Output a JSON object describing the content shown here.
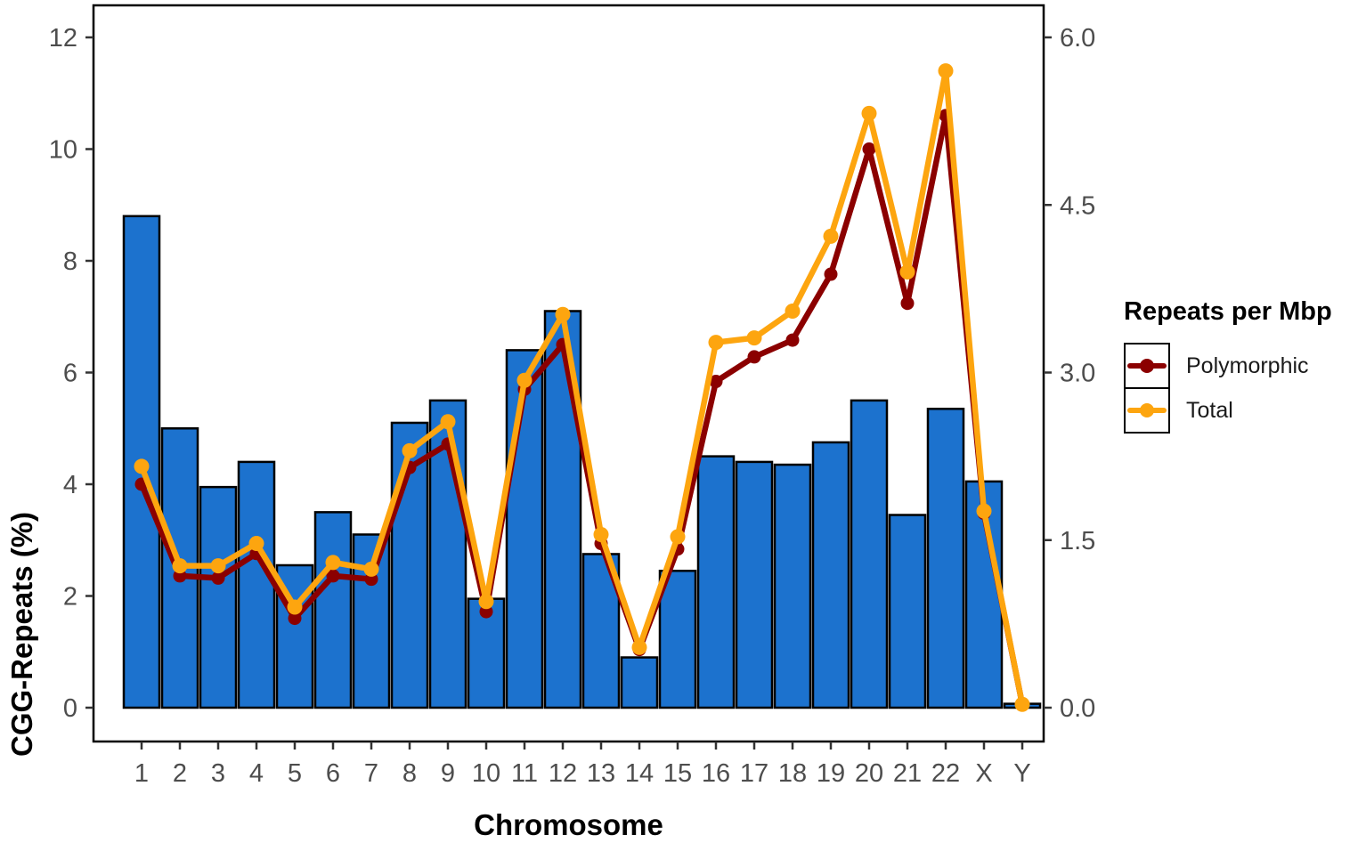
{
  "figure": {
    "y_axis_title": "CGG-Repeats (%)",
    "x_axis_title": "Chromosome"
  },
  "chart_data": {
    "type": "combo-bar-line",
    "title": "",
    "categories": [
      "1",
      "2",
      "3",
      "4",
      "5",
      "6",
      "7",
      "8",
      "9",
      "10",
      "11",
      "12",
      "13",
      "14",
      "15",
      "16",
      "17",
      "18",
      "19",
      "20",
      "21",
      "22",
      "X",
      "Y"
    ],
    "bar_series": {
      "name": "CGG-Repeats (%)",
      "axis": "left",
      "color": "#1C72CE",
      "stroke_color": "#000000",
      "values": [
        8.8,
        5.0,
        3.95,
        4.4,
        2.55,
        3.5,
        3.1,
        5.1,
        5.5,
        1.95,
        6.4,
        7.1,
        2.75,
        0.9,
        2.45,
        4.5,
        4.4,
        4.35,
        4.75,
        5.5,
        3.45,
        5.35,
        4.05,
        0.07
      ]
    },
    "line_series": [
      {
        "name": "Polymorphic",
        "axis": "right",
        "color": "#8B0000",
        "values": [
          2.0,
          1.18,
          1.16,
          1.38,
          0.8,
          1.18,
          1.15,
          2.15,
          2.36,
          0.86,
          2.85,
          3.25,
          1.47,
          0.52,
          1.42,
          2.92,
          3.14,
          3.29,
          3.88,
          5.0,
          3.62,
          5.3,
          1.74,
          0.03
        ]
      },
      {
        "name": "Total",
        "axis": "right",
        "color": "#FDA50F",
        "values": [
          2.16,
          1.27,
          1.27,
          1.47,
          0.9,
          1.3,
          1.24,
          2.3,
          2.56,
          0.95,
          2.93,
          3.52,
          1.55,
          0.54,
          1.53,
          3.27,
          3.31,
          3.55,
          4.22,
          5.32,
          3.9,
          5.7,
          1.76,
          0.03
        ]
      }
    ],
    "left_axis": {
      "label": "CGG-Repeats (%)",
      "ticks": [
        0,
        2,
        4,
        6,
        8,
        10,
        12
      ],
      "range": [
        0,
        12
      ]
    },
    "right_axis": {
      "label": "Repeats per Mbp",
      "ticks": [
        "0.0",
        "1.5",
        "3.0",
        "4.5",
        "6.0"
      ],
      "range": [
        0,
        6
      ]
    },
    "x_axis": {
      "label": "Chromosome"
    },
    "legend": {
      "title": "Repeats per Mbp",
      "position": "right",
      "items": [
        {
          "label": "Polymorphic",
          "color": "#8B0000"
        },
        {
          "label": "Total",
          "color": "#FDA50F"
        }
      ]
    },
    "grid": false,
    "panel_border_color": "#000000",
    "tick_label_color": "#4d4d4d"
  }
}
